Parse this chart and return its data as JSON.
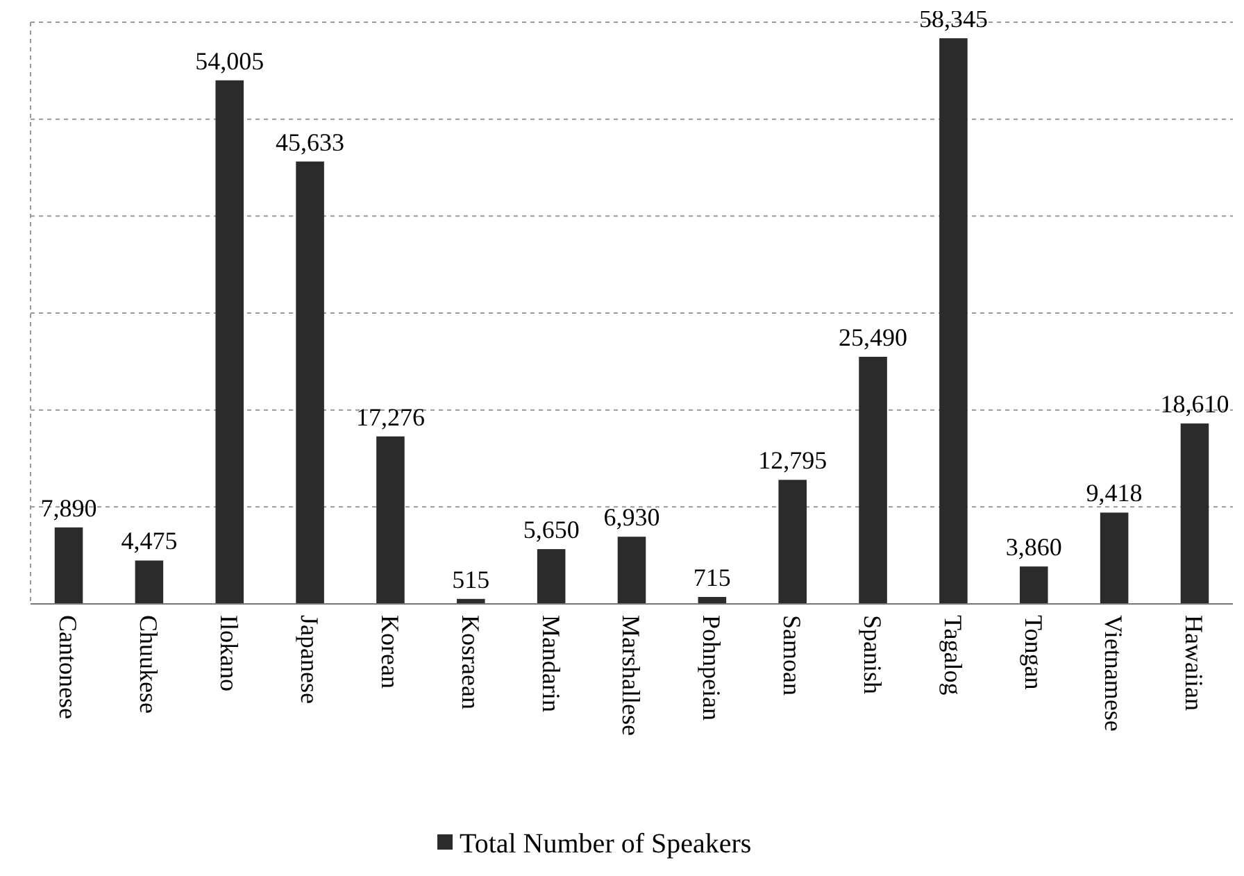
{
  "chart_data": {
    "type": "bar",
    "categories": [
      "Cantonese",
      "Chuukese",
      "Ilokano",
      "Japanese",
      "Korean",
      "Kosraean",
      "Mandarin",
      "Marshallese",
      "Pohnpeian",
      "Samoan",
      "Spanish",
      "Tagalog",
      "Tongan",
      "Vietnamese",
      "Hawaiian"
    ],
    "series": [
      {
        "name": "Total Number of Speakers",
        "color": "#2b2b2b",
        "values": [
          7890,
          4475,
          54005,
          45633,
          17276,
          515,
          5650,
          6930,
          715,
          12795,
          25490,
          58345,
          3860,
          9418,
          18610
        ],
        "value_labels": [
          "7,890",
          "4,475",
          "54,005",
          "45,633",
          "17,276",
          "515",
          "5,650",
          "6,930",
          "715",
          "12,795",
          "25,490",
          "58,345",
          "3,860",
          "9,418",
          "18,610"
        ]
      }
    ],
    "ylim": [
      0,
      60000
    ],
    "yticks": [
      {
        "value": 0,
        "label": null
      },
      {
        "value": 10000,
        "label": null
      },
      {
        "value": 20000,
        "label": null
      },
      {
        "value": 30000,
        "label": null
      },
      {
        "value": 40000,
        "label": null
      },
      {
        "value": 50000,
        "label": null
      },
      {
        "value": 60000,
        "label": null
      }
    ],
    "tick_labels": "x",
    "grid": "y",
    "legend": "bottom"
  }
}
